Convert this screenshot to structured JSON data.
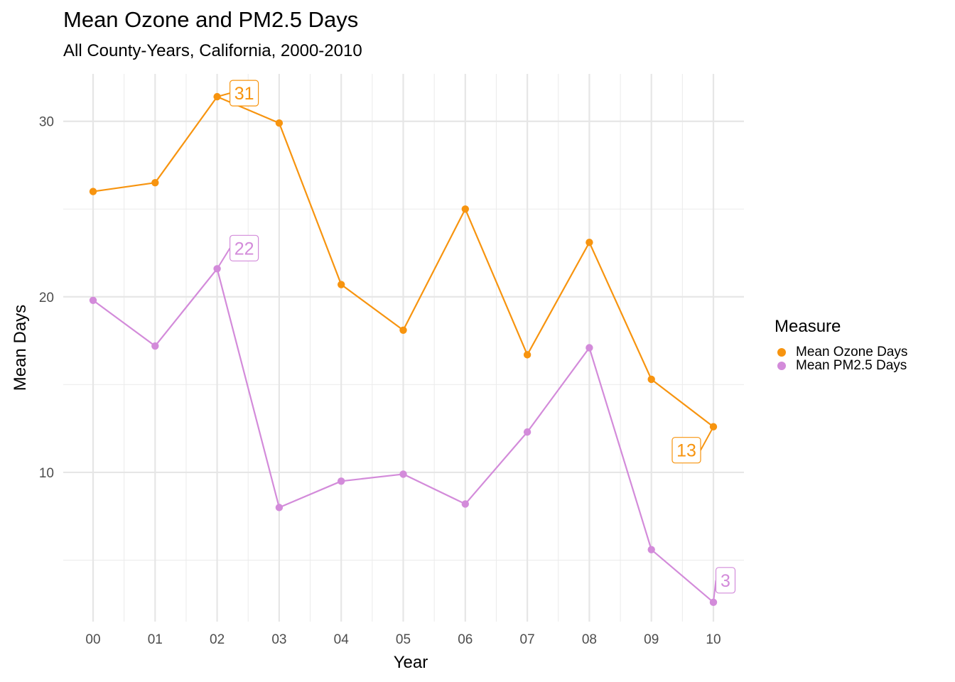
{
  "title": "Mean Ozone and PM2.5 Days",
  "subtitle": "All County-Years, California, 2000-2010",
  "legend": {
    "title": "Measure",
    "items": [
      {
        "label": "Mean Ozone Days",
        "color": "#F7940F"
      },
      {
        "label": "Mean PM2.5 Days",
        "color": "#D38BDA"
      }
    ]
  },
  "chart_data": {
    "type": "line",
    "title": "Mean Ozone and PM2.5 Days",
    "subtitle": "All County-Years, California, 2000-2010",
    "xlabel": "Year",
    "ylabel": "Mean Days",
    "categories": [
      "00",
      "01",
      "02",
      "03",
      "04",
      "05",
      "06",
      "07",
      "08",
      "09",
      "10"
    ],
    "ylim": [
      1.5,
      32.7
    ],
    "yticks": [
      10,
      20,
      30
    ],
    "grid": true,
    "legend_position": "right",
    "series": [
      {
        "name": "Mean Ozone Days",
        "color": "#F7940F",
        "values": [
          26.0,
          26.5,
          31.4,
          29.9,
          20.7,
          18.1,
          25.0,
          16.7,
          23.1,
          15.3,
          12.6
        ],
        "labels": [
          {
            "index": 2,
            "text": "31"
          },
          {
            "index": 10,
            "text": "13"
          }
        ]
      },
      {
        "name": "Mean PM2.5 Days",
        "color": "#D38BDA",
        "values": [
          19.8,
          17.2,
          21.6,
          8.0,
          9.5,
          9.9,
          8.2,
          12.3,
          17.1,
          5.6,
          2.6
        ],
        "labels": [
          {
            "index": 2,
            "text": "22"
          },
          {
            "index": 10,
            "text": "3"
          }
        ]
      }
    ]
  }
}
